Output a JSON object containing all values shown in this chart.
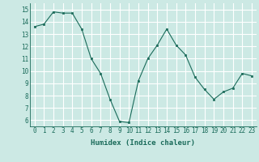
{
  "x": [
    0,
    1,
    2,
    3,
    4,
    5,
    6,
    7,
    8,
    9,
    10,
    11,
    12,
    13,
    14,
    15,
    16,
    17,
    18,
    19,
    20,
    21,
    22,
    23
  ],
  "y": [
    13.6,
    13.8,
    14.8,
    14.7,
    14.7,
    13.4,
    11.0,
    9.8,
    7.7,
    5.9,
    5.8,
    9.2,
    11.0,
    12.1,
    13.4,
    12.1,
    11.3,
    9.5,
    8.5,
    7.7,
    8.3,
    8.6,
    9.8,
    9.6
  ],
  "line_color": "#1a6b5a",
  "marker_color": "#1a6b5a",
  "bg_color": "#cce9e4",
  "grid_color": "#ffffff",
  "xlabel": "Humidex (Indice chaleur)",
  "ylim": [
    5.5,
    15.5
  ],
  "xlim": [
    -0.5,
    23.5
  ],
  "yticks": [
    6,
    7,
    8,
    9,
    10,
    11,
    12,
    13,
    14,
    15
  ],
  "xticks": [
    0,
    1,
    2,
    3,
    4,
    5,
    6,
    7,
    8,
    9,
    10,
    11,
    12,
    13,
    14,
    15,
    16,
    17,
    18,
    19,
    20,
    21,
    22,
    23
  ],
  "title_fontsize": 6,
  "tick_fontsize": 5.5,
  "xlabel_fontsize": 6.5
}
